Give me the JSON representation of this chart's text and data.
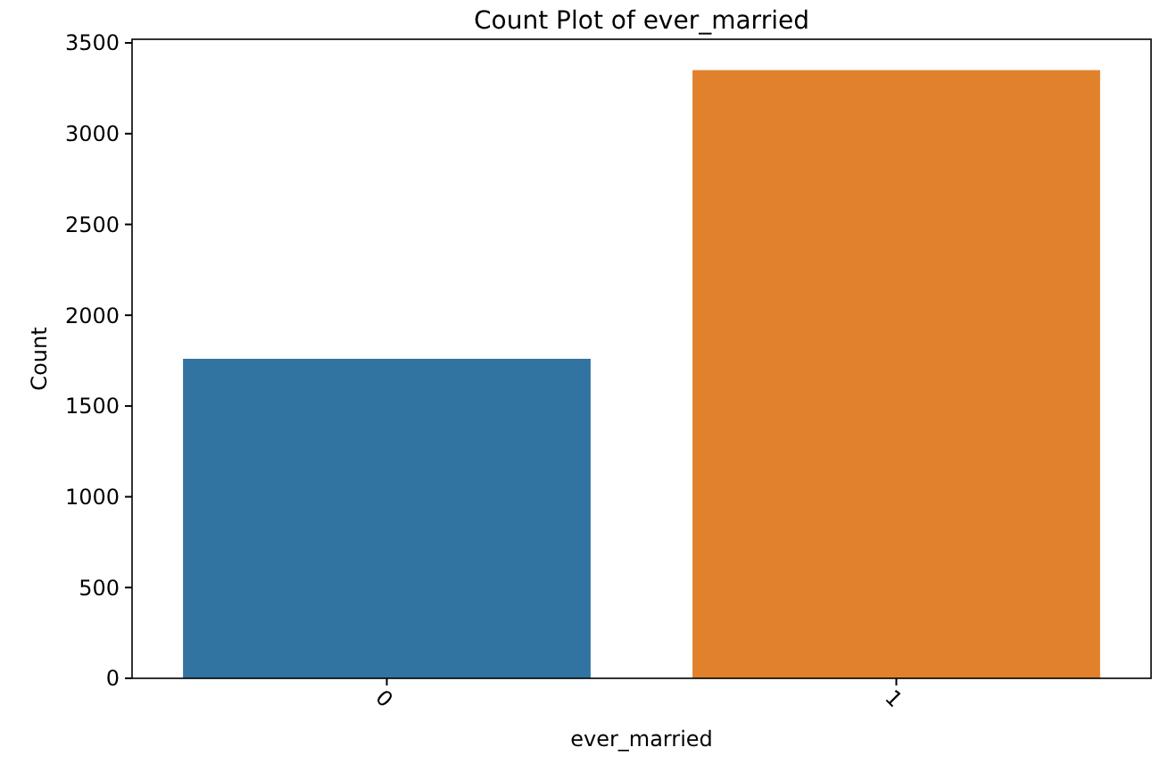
{
  "chart_data": {
    "type": "bar",
    "title": "Count Plot of ever_married",
    "xlabel": "ever_married",
    "ylabel": "Count",
    "categories": [
      "0",
      "1"
    ],
    "values": [
      1760,
      3350
    ],
    "colors": [
      "#3274a1",
      "#e1812c"
    ],
    "ylim": [
      0,
      3520
    ],
    "yticks": [
      0,
      500,
      1000,
      1500,
      2000,
      2500,
      3000,
      3500
    ],
    "grid": false
  }
}
